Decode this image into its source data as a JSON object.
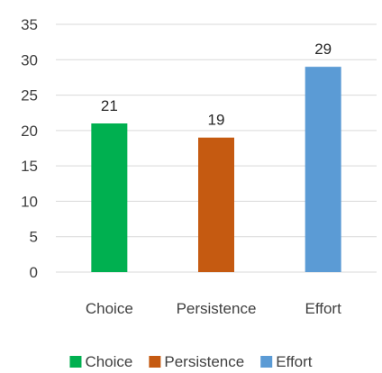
{
  "chart_data": {
    "type": "bar",
    "categories": [
      "Choice",
      "Persistence",
      "Effort"
    ],
    "values": [
      21,
      19,
      29
    ],
    "colors": [
      "#00b050",
      "#c55a11",
      "#5b9bd5"
    ],
    "ylim": [
      0,
      35
    ],
    "yticks": [
      0,
      5,
      10,
      15,
      20,
      25,
      30,
      35
    ],
    "grid": true,
    "grid_color": "#d9d9d9",
    "legend_position": "bottom",
    "legend": [
      "Choice",
      "Persistence",
      "Effort"
    ],
    "data_labels": true
  }
}
